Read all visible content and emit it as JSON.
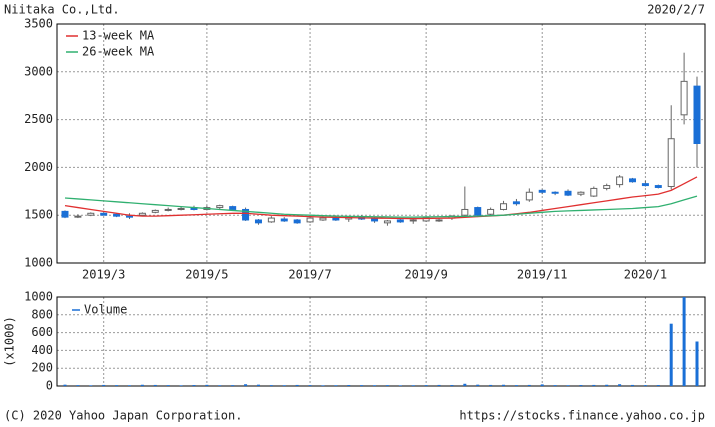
{
  "chart_data": [
    {
      "type": "candlestick",
      "title": "Niitaka Co.,Ltd.",
      "date": "2020/2/7",
      "categories": [
        null,
        null,
        null,
        "2019/3",
        null,
        null,
        null,
        null,
        null,
        null,
        null,
        "2019/5",
        null,
        null,
        null,
        null,
        null,
        null,
        null,
        "2019/7",
        null,
        null,
        null,
        null,
        null,
        null,
        null,
        null,
        "2019/9",
        null,
        null,
        null,
        null,
        null,
        null,
        null,
        null,
        "2019/11",
        null,
        null,
        null,
        null,
        null,
        null,
        null,
        "2020/1",
        null,
        null,
        null,
        null
      ],
      "open": [
        1540,
        1490,
        1500,
        1520,
        1510,
        1490,
        1500,
        1530,
        1550,
        1560,
        1580,
        1560,
        1580,
        1590,
        1560,
        1450,
        1430,
        1460,
        1450,
        1430,
        1450,
        1470,
        1460,
        1480,
        1460,
        1420,
        1450,
        1440,
        1440,
        1450,
        1470,
        1500,
        1580,
        1510,
        1560,
        1640,
        1660,
        1760,
        1740,
        1750,
        1720,
        1700,
        1780,
        1820,
        1880,
        1830,
        1810,
        1800,
        2550,
        2850
      ],
      "high": [
        1550,
        1510,
        1530,
        1530,
        1520,
        1520,
        1530,
        1560,
        1580,
        1590,
        1600,
        1600,
        1610,
        1600,
        1580,
        1460,
        1490,
        1480,
        1460,
        1480,
        1490,
        1500,
        1490,
        1500,
        1480,
        1450,
        1470,
        1460,
        1480,
        1470,
        1500,
        1800,
        1590,
        1580,
        1650,
        1670,
        1780,
        1770,
        1750,
        1770,
        1750,
        1800,
        1830,
        1920,
        1890,
        1860,
        1820,
        2650,
        3200,
        2950
      ],
      "low": [
        1470,
        1470,
        1490,
        1500,
        1480,
        1460,
        1490,
        1520,
        1540,
        1550,
        1550,
        1550,
        1560,
        1550,
        1440,
        1400,
        1420,
        1430,
        1410,
        1420,
        1440,
        1440,
        1430,
        1450,
        1420,
        1390,
        1420,
        1410,
        1430,
        1430,
        1450,
        1480,
        1480,
        1500,
        1550,
        1600,
        1640,
        1720,
        1710,
        1700,
        1700,
        1690,
        1760,
        1790,
        1840,
        1800,
        1780,
        1770,
        2450,
        2000
      ],
      "close": [
        1480,
        1490,
        1520,
        1500,
        1490,
        1480,
        1520,
        1550,
        1560,
        1570,
        1560,
        1580,
        1600,
        1560,
        1450,
        1420,
        1470,
        1440,
        1420,
        1470,
        1470,
        1450,
        1480,
        1460,
        1440,
        1440,
        1430,
        1450,
        1470,
        1450,
        1490,
        1560,
        1500,
        1560,
        1620,
        1620,
        1740,
        1740,
        1730,
        1710,
        1740,
        1780,
        1810,
        1900,
        1850,
        1810,
        1790,
        2300,
        2900,
        2250
      ],
      "up_color": "#ffffff",
      "down_color": "#1a6fd6",
      "series": [
        {
          "name": "13-week MA",
          "color": "#e03030",
          "values": [
            1600,
            1580,
            1560,
            1540,
            1520,
            1500,
            1490,
            1490,
            1495,
            1500,
            1505,
            1510,
            1515,
            1520,
            1520,
            1510,
            1500,
            1495,
            1490,
            1485,
            1480,
            1478,
            1475,
            1472,
            1470,
            1468,
            1466,
            1465,
            1466,
            1468,
            1470,
            1478,
            1485,
            1492,
            1500,
            1515,
            1530,
            1550,
            1570,
            1590,
            1610,
            1630,
            1650,
            1670,
            1690,
            1705,
            1720,
            1760,
            1830,
            1900
          ]
        },
        {
          "name": "26-week MA",
          "color": "#30b070",
          "values": [
            1680,
            1670,
            1660,
            1650,
            1640,
            1630,
            1620,
            1610,
            1600,
            1590,
            1580,
            1570,
            1560,
            1550,
            1540,
            1530,
            1520,
            1510,
            1505,
            1500,
            1495,
            1490,
            1488,
            1486,
            1484,
            1482,
            1480,
            1480,
            1482,
            1484,
            1486,
            1488,
            1490,
            1495,
            1500,
            1510,
            1520,
            1530,
            1540,
            1545,
            1550,
            1555,
            1560,
            1565,
            1570,
            1580,
            1590,
            1620,
            1660,
            1700
          ]
        }
      ],
      "ylim": [
        1000,
        3500
      ],
      "yticks": [
        1000,
        1500,
        2000,
        2500,
        3000,
        3500
      ],
      "grid": true
    },
    {
      "type": "bar",
      "ylabel": "(x1000)",
      "categories": [
        null,
        null,
        null,
        "2019/3",
        null,
        null,
        null,
        null,
        null,
        null,
        null,
        "2019/5",
        null,
        null,
        null,
        null,
        null,
        null,
        null,
        "2019/7",
        null,
        null,
        null,
        null,
        null,
        null,
        null,
        null,
        "2019/9",
        null,
        null,
        null,
        null,
        null,
        null,
        null,
        null,
        "2019/11",
        null,
        null,
        null,
        null,
        null,
        null,
        null,
        "2020/1",
        null,
        null,
        null,
        null
      ],
      "series": [
        {
          "name": "Volume",
          "color": "#1a6fd6",
          "values": [
            15,
            10,
            8,
            12,
            10,
            9,
            14,
            12,
            10,
            8,
            11,
            13,
            9,
            10,
            20,
            15,
            10,
            9,
            12,
            10,
            8,
            9,
            11,
            10,
            9,
            10,
            8,
            9,
            10,
            12,
            11,
            25,
            15,
            12,
            14,
            10,
            12,
            18,
            10,
            9,
            11,
            12,
            14,
            20,
            12,
            10,
            11,
            700,
            1000,
            500
          ]
        }
      ],
      "ylim": [
        0,
        1000
      ],
      "yticks": [
        0,
        200,
        400,
        600,
        800,
        1000
      ],
      "grid": true
    }
  ],
  "footer": {
    "copyright": "(C) 2020 Yahoo Japan Corporation.",
    "url": "https://stocks.finance.yahoo.co.jp"
  }
}
